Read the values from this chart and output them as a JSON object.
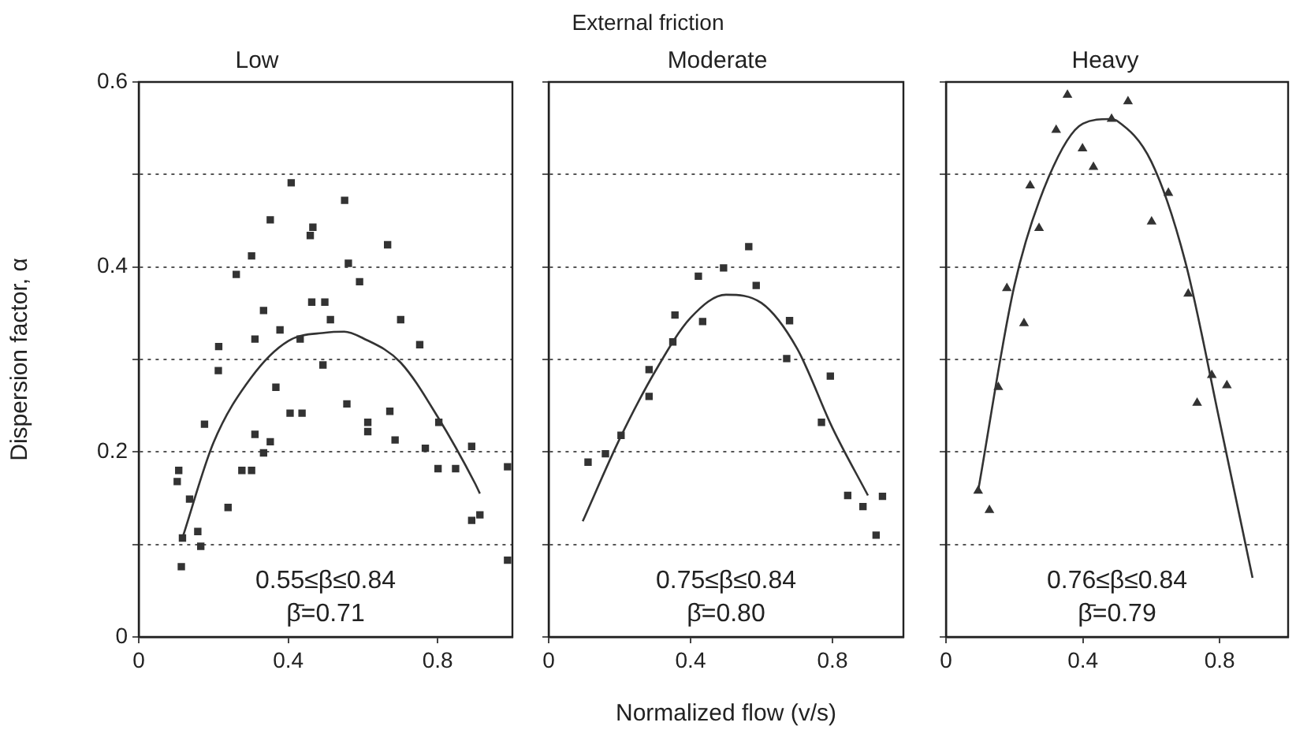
{
  "chart_data": [
    {
      "type": "scatter",
      "subtitle": "Low",
      "ylabel": "Dispersion factor, α",
      "xlim": [
        0,
        1
      ],
      "xticks": [
        0,
        0.4,
        0.8
      ],
      "ylim": [
        0,
        0.6
      ],
      "yticks": [
        0,
        {
          "value": 0.1,
          "label": null
        },
        0.2,
        {
          "value": 0.3,
          "label": null
        },
        0.4,
        {
          "value": 0.5,
          "label": null
        },
        0.6
      ],
      "grid": "y",
      "annotations": [
        "0.55≤β≤0.84",
        "β̄=0.71"
      ],
      "series": [
        {
          "type": "scatter",
          "marker": "square",
          "color": "#333333",
          "x": [
            0.107,
            0.103,
            0.114,
            0.136,
            0.117,
            0.158,
            0.166,
            0.176,
            0.214,
            0.213,
            0.239,
            0.261,
            0.276,
            0.302,
            0.302,
            0.311,
            0.311,
            0.334,
            0.334,
            0.352,
            0.352,
            0.367,
            0.378,
            0.408,
            0.405,
            0.437,
            0.432,
            0.459,
            0.466,
            0.463,
            0.498,
            0.493,
            0.513,
            0.551,
            0.557,
            0.561,
            0.591,
            0.613,
            0.613,
            0.666,
            0.672,
            0.686,
            0.701,
            0.752,
            0.767,
            0.803,
            0.801,
            0.848,
            0.891,
            0.891,
            0.913,
            0.987,
            0.987
          ],
          "values": [
            0.18,
            0.168,
            0.076,
            0.149,
            0.107,
            0.114,
            0.098,
            0.23,
            0.314,
            0.288,
            0.14,
            0.392,
            0.18,
            0.18,
            0.412,
            0.322,
            0.219,
            0.353,
            0.199,
            0.451,
            0.211,
            0.27,
            0.332,
            0.491,
            0.242,
            0.242,
            0.322,
            0.434,
            0.443,
            0.362,
            0.362,
            0.294,
            0.343,
            0.472,
            0.252,
            0.404,
            0.384,
            0.232,
            0.222,
            0.424,
            0.244,
            0.213,
            0.343,
            0.316,
            0.204,
            0.232,
            0.182,
            0.182,
            0.206,
            0.126,
            0.132,
            0.184,
            0.083
          ]
        },
        {
          "type": "line",
          "marker": "none",
          "color": "#333333",
          "x": [
            0.117,
            0.2,
            0.3,
            0.4,
            0.5,
            0.55,
            0.6,
            0.7,
            0.8,
            0.9,
            0.913
          ],
          "values": [
            0.107,
            0.21,
            0.28,
            0.32,
            0.329,
            0.33,
            0.323,
            0.297,
            0.238,
            0.166,
            0.155
          ]
        }
      ]
    },
    {
      "type": "scatter",
      "title": "External friction",
      "subtitle": "Moderate",
      "xlabel": "Normalized flow (v/s)",
      "xlim": [
        0,
        1
      ],
      "xticks": [
        0,
        0.4,
        0.8
      ],
      "ylim": [
        0,
        0.6
      ],
      "yticks": [
        0,
        {
          "value": 0.1,
          "label": null
        },
        0.2,
        {
          "value": 0.3,
          "label": null
        },
        0.4,
        {
          "value": 0.5,
          "label": null
        },
        0.6
      ],
      "grid": "y",
      "tick_labels": "x",
      "annotations": [
        "0.75≤β≤0.84",
        "β̄=0.80"
      ],
      "series": [
        {
          "type": "scatter",
          "marker": "square",
          "color": "#333333",
          "x": [
            0.111,
            0.16,
            0.204,
            0.283,
            0.283,
            0.35,
            0.356,
            0.422,
            0.434,
            0.493,
            0.564,
            0.585,
            0.679,
            0.671,
            0.769,
            0.794,
            0.843,
            0.886,
            0.941,
            0.923
          ],
          "values": [
            0.189,
            0.198,
            0.218,
            0.26,
            0.289,
            0.319,
            0.348,
            0.39,
            0.341,
            0.399,
            0.422,
            0.38,
            0.342,
            0.301,
            0.232,
            0.282,
            0.153,
            0.141,
            0.152,
            0.11
          ]
        },
        {
          "type": "line",
          "marker": "none",
          "color": "#333333",
          "x": [
            0.096,
            0.2,
            0.3,
            0.4,
            0.5,
            0.6,
            0.7,
            0.8,
            0.9
          ],
          "values": [
            0.125,
            0.214,
            0.287,
            0.345,
            0.37,
            0.361,
            0.312,
            0.226,
            0.153
          ]
        }
      ]
    },
    {
      "type": "scatter",
      "subtitle": "Heavy",
      "xlim": [
        0,
        1
      ],
      "xticks": [
        0,
        0.4,
        0.8
      ],
      "ylim": [
        0,
        0.6
      ],
      "yticks": [
        0,
        {
          "value": 0.1,
          "label": null
        },
        0.2,
        {
          "value": 0.3,
          "label": null
        },
        0.4,
        {
          "value": 0.5,
          "label": null
        },
        0.6
      ],
      "grid": "y",
      "tick_labels": "x",
      "annotations": [
        "0.76≤β≤0.84",
        "β̄=0.79"
      ],
      "series": [
        {
          "type": "scatter",
          "marker": "triangle",
          "color": "#333333",
          "x": [
            0.094,
            0.127,
            0.153,
            0.178,
            0.228,
            0.246,
            0.272,
            0.322,
            0.355,
            0.399,
            0.431,
            0.484,
            0.532,
            0.601,
            0.65,
            0.708,
            0.734,
            0.777,
            0.821
          ],
          "values": [
            0.158,
            0.137,
            0.27,
            0.377,
            0.339,
            0.488,
            0.442,
            0.548,
            0.586,
            0.528,
            0.508,
            0.56,
            0.579,
            0.449,
            0.48,
            0.371,
            0.253,
            0.283,
            0.272
          ]
        },
        {
          "type": "line",
          "marker": "none",
          "color": "#333333",
          "x": [
            0.094,
            0.2,
            0.3,
            0.4,
            0.48,
            0.5,
            0.6,
            0.7,
            0.8,
            0.896
          ],
          "values": [
            0.158,
            0.38,
            0.497,
            0.555,
            0.56,
            0.558,
            0.514,
            0.405,
            0.233,
            0.064
          ]
        }
      ]
    }
  ]
}
